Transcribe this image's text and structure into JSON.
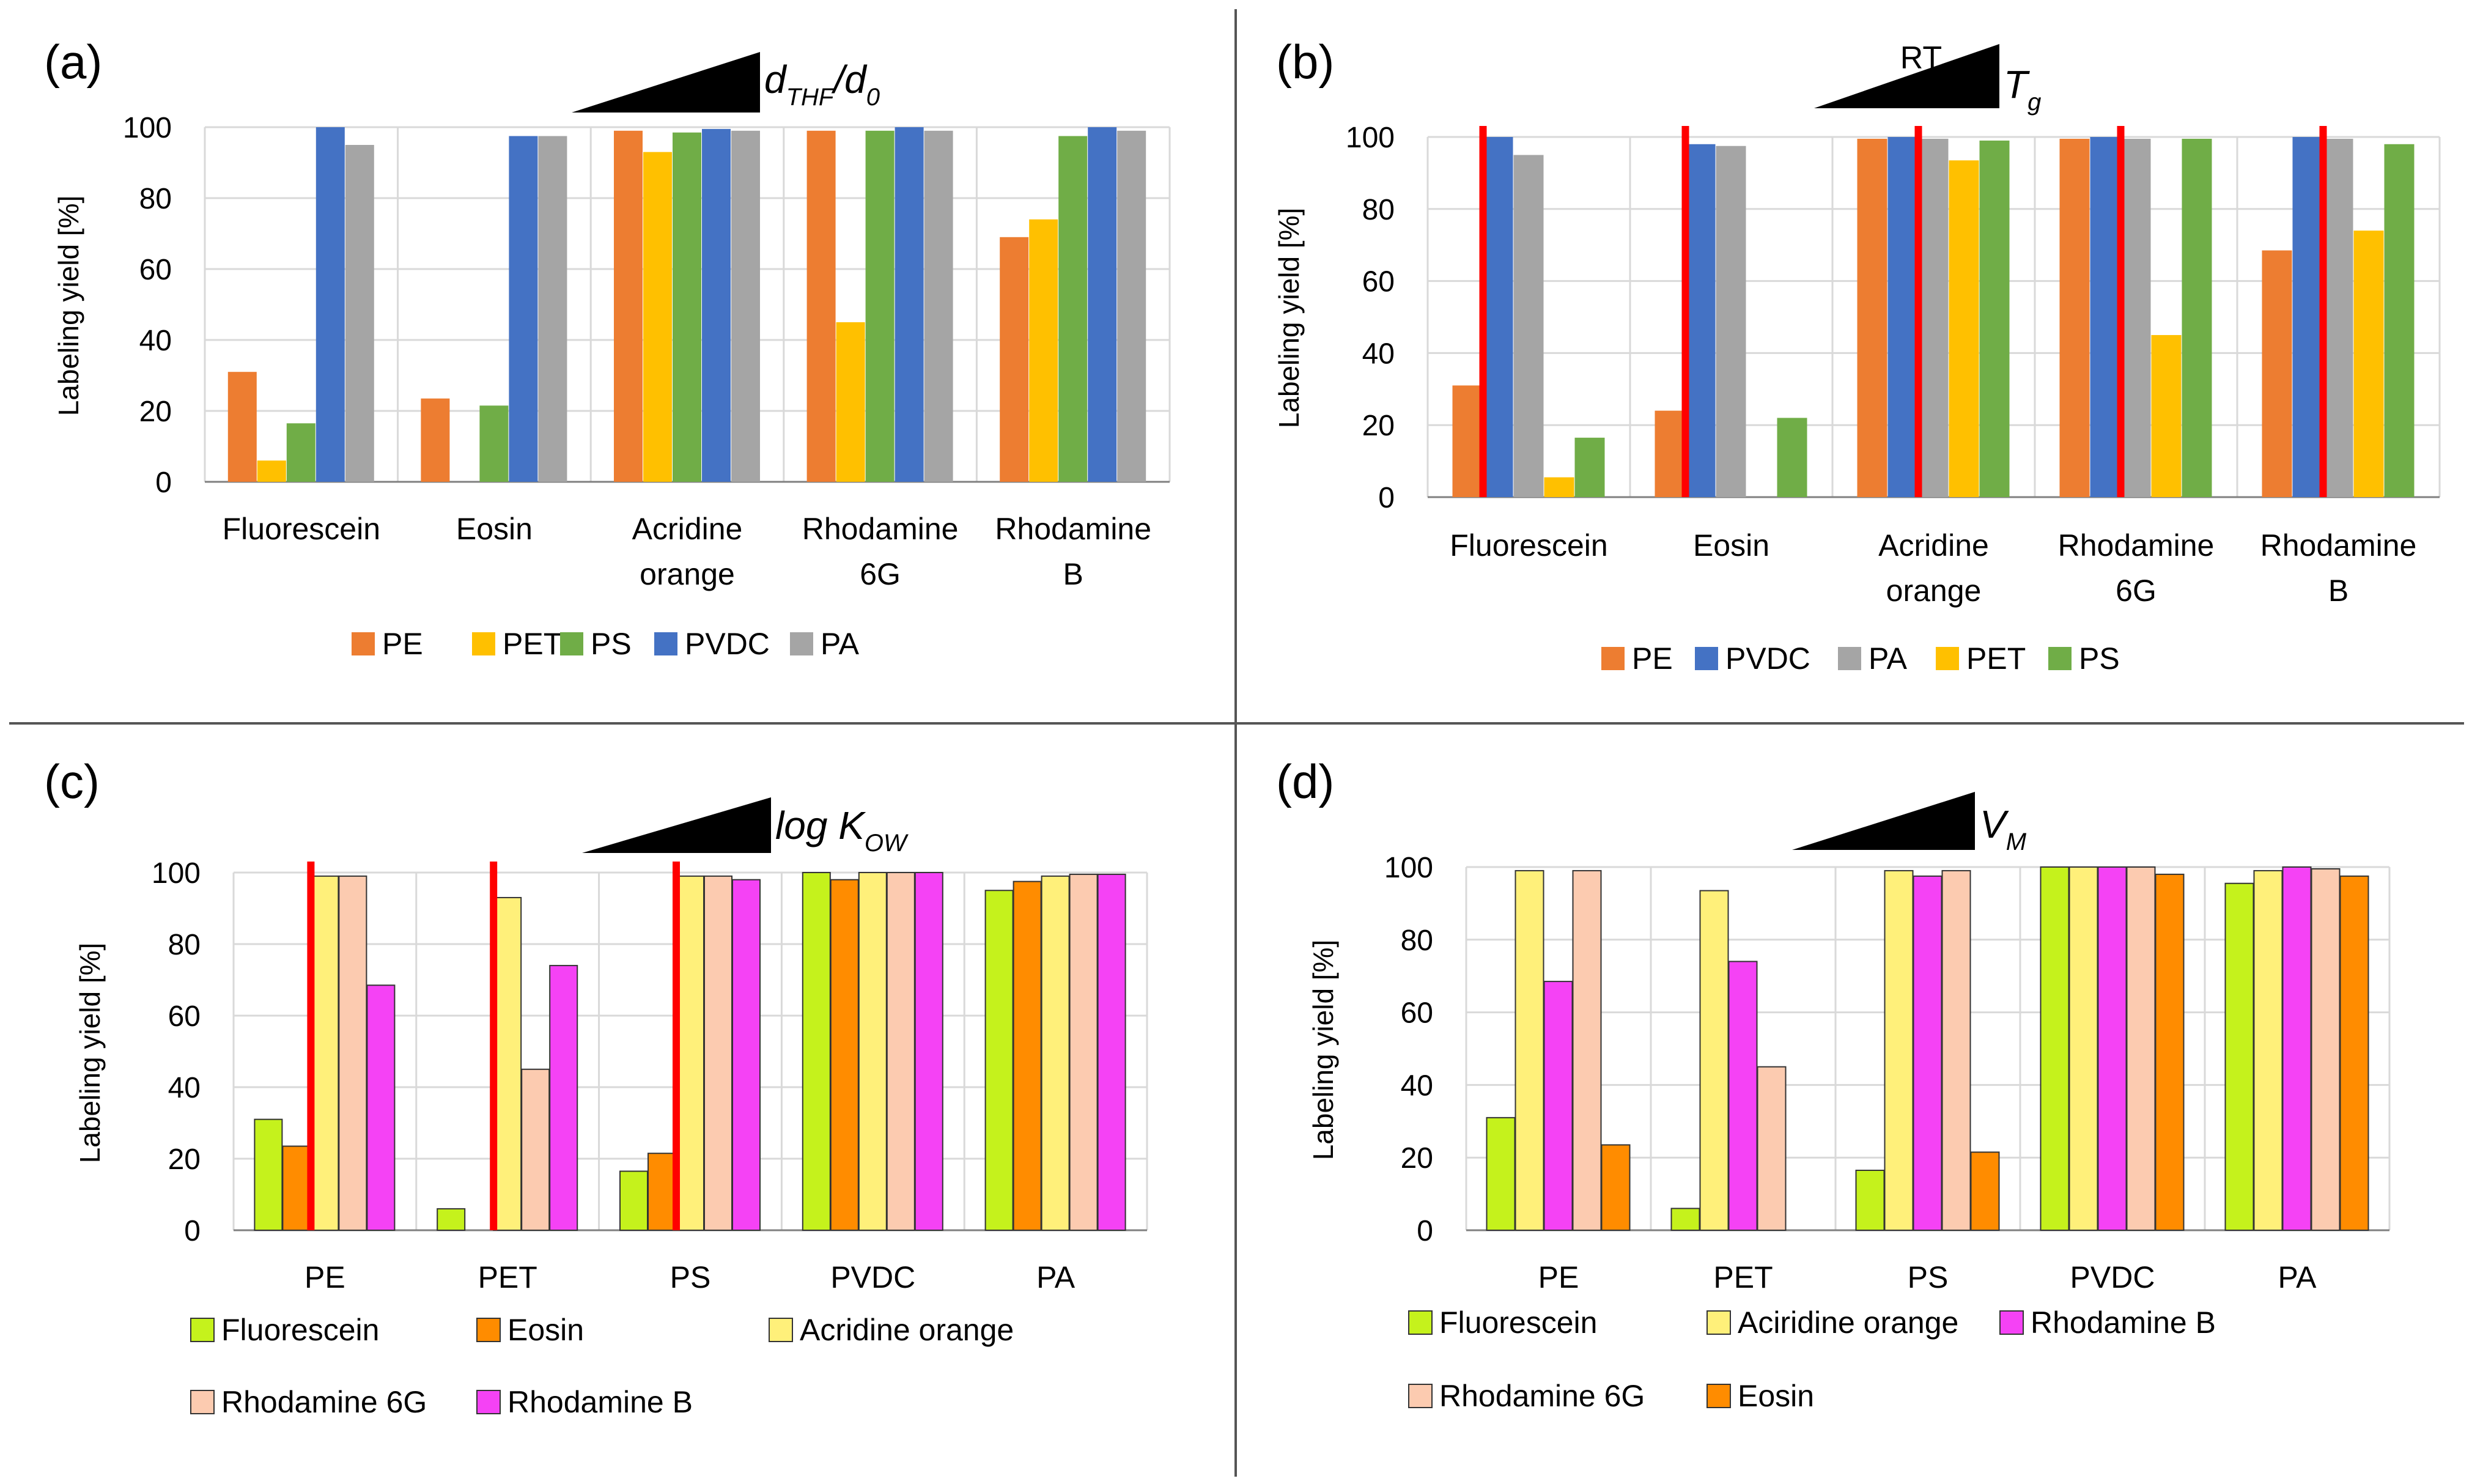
{
  "chart_data": [
    {
      "type": "bar",
      "panel": "(a)",
      "ylabel": "Labeling yield [%]",
      "ylim": [
        0,
        100
      ],
      "yticks": [
        "0",
        "20",
        "40",
        "60",
        "80",
        "100"
      ],
      "categories": [
        [
          "Fluorescein"
        ],
        [
          "Eosin"
        ],
        [
          "Acridine",
          "orange"
        ],
        [
          "Rhodamine",
          "6G"
        ],
        [
          "Rhodamine",
          "B"
        ]
      ],
      "series": [
        {
          "name": "PE",
          "color": "#ED7D31",
          "values": [
            31,
            23.5,
            99,
            99,
            69
          ]
        },
        {
          "name": "PET",
          "color": "#FFC000",
          "values": [
            6,
            0,
            93,
            45,
            74
          ]
        },
        {
          "name": "PS",
          "color": "#70AD47",
          "values": [
            16.5,
            21.5,
            98.5,
            99,
            97.5
          ]
        },
        {
          "name": "PVDC",
          "color": "#4472C4",
          "values": [
            100,
            97.5,
            99.5,
            100,
            100
          ]
        },
        {
          "name": "PA",
          "color": "#A5A5A5",
          "values": [
            95,
            97.5,
            99,
            99,
            99
          ]
        }
      ],
      "wedge_label": {
        "main": "d",
        "sub": "THF",
        "rest": "/d",
        "sub2": "0"
      }
    },
    {
      "type": "bar",
      "panel": "(b)",
      "ylabel": "Labeling yield [%]",
      "ylim": [
        0,
        100
      ],
      "yticks": [
        "0",
        "20",
        "40",
        "60",
        "80",
        "100"
      ],
      "categories": [
        [
          "Fluorescein"
        ],
        [
          "Eosin"
        ],
        [
          "Acridine",
          "orange"
        ],
        [
          "Rhodamine",
          "6G"
        ],
        [
          "Rhodamine",
          "B"
        ]
      ],
      "series": [
        {
          "name": "PE",
          "color": "#ED7D31",
          "values": [
            31,
            24,
            99.5,
            99.5,
            68.5
          ]
        },
        {
          "name": "PVDC",
          "color": "#4472C4",
          "values": [
            100,
            98,
            100,
            100,
            100
          ]
        },
        {
          "name": "PA",
          "color": "#A5A5A5",
          "values": [
            95,
            97.5,
            99.5,
            99.5,
            99.5
          ]
        },
        {
          "name": "PET",
          "color": "#FFC000",
          "values": [
            5.5,
            0,
            93.5,
            45,
            74
          ]
        },
        {
          "name": "PS",
          "color": "#70AD47",
          "values": [
            16.5,
            22,
            99,
            99.5,
            98
          ]
        }
      ],
      "red_markers_after_series_index": [
        0,
        0,
        1,
        1,
        1
      ],
      "wedge_label": {
        "main": "T",
        "sub": "g",
        "start_label": "RT"
      }
    },
    {
      "type": "bar",
      "panel": "(c)",
      "ylabel": "Labeling yield [%]",
      "ylim": [
        0,
        100
      ],
      "yticks": [
        "0",
        "20",
        "40",
        "60",
        "80",
        "100"
      ],
      "categories": [
        [
          "PE"
        ],
        [
          "PET"
        ],
        [
          "PS"
        ],
        [
          "PVDC"
        ],
        [
          "PA"
        ]
      ],
      "series": [
        {
          "name": "Fluorescein",
          "color": "#C5F21C",
          "values": [
            31,
            6,
            16.5,
            100,
            95
          ]
        },
        {
          "name": "Eosin",
          "color": "#FF8C00",
          "values": [
            23.5,
            0,
            21.5,
            98,
            97.5
          ]
        },
        {
          "name": "Acridine orange",
          "color": "#FFF07A",
          "values": [
            99,
            93,
            99,
            100,
            99
          ]
        },
        {
          "name": "Rhodamine 6G",
          "color": "#FCCBB0",
          "values": [
            99,
            45,
            99,
            100,
            99.5
          ]
        },
        {
          "name": "Rhodamine B",
          "color": "#F542F5",
          "values": [
            68.5,
            74,
            98,
            100,
            99.5
          ]
        }
      ],
      "red_markers_after_series_index": [
        1,
        1,
        1,
        null,
        null
      ],
      "wedge_label": {
        "main": "log K",
        "sub": "OW"
      }
    },
    {
      "type": "bar",
      "panel": "(d)",
      "ylabel": "Labeling yield [%]",
      "ylim": [
        0,
        100
      ],
      "yticks": [
        "0",
        "20",
        "40",
        "60",
        "80",
        "100"
      ],
      "categories": [
        [
          "PE"
        ],
        [
          "PET"
        ],
        [
          "PS"
        ],
        [
          "PVDC"
        ],
        [
          "PA"
        ]
      ],
      "series": [
        {
          "name": "Fluorescein",
          "color": "#C5F21C",
          "values": [
            31,
            6,
            16.5,
            100,
            95.5
          ]
        },
        {
          "name": "Aciridine orange",
          "color": "#FFF07A",
          "values": [
            99,
            93.5,
            99,
            100,
            99
          ]
        },
        {
          "name": "Rhodamine B",
          "color": "#F542F5",
          "values": [
            68.5,
            74,
            97.5,
            100,
            100
          ]
        },
        {
          "name": "Rhodamine 6G",
          "color": "#FCCBB0",
          "values": [
            99,
            45,
            99,
            100,
            99.5
          ]
        },
        {
          "name": "Eosin",
          "color": "#FF8C00",
          "values": [
            23.5,
            0,
            21.5,
            98,
            97.5
          ]
        }
      ],
      "wedge_label": {
        "main": "V",
        "sub": "M"
      }
    }
  ]
}
